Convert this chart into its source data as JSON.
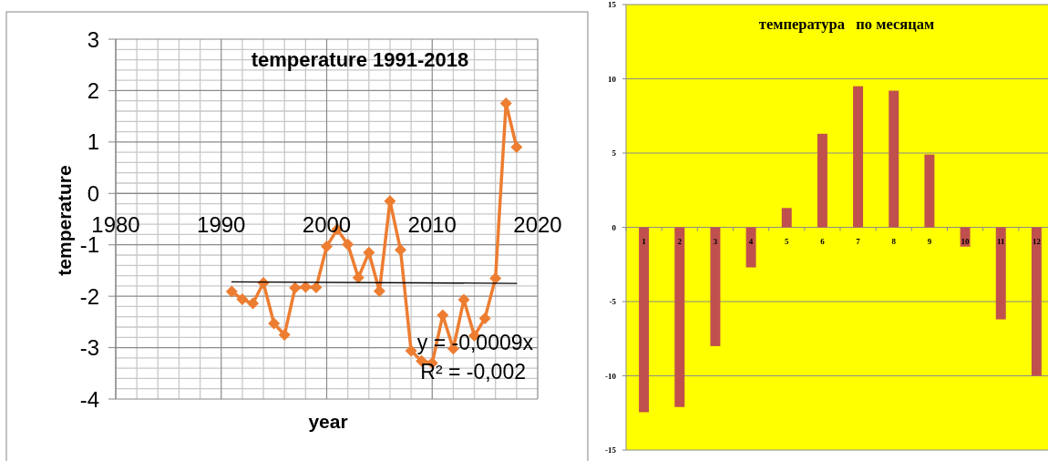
{
  "chart_data": [
    {
      "type": "line",
      "title": "temperature 1991-2018",
      "xlabel": "year",
      "ylabel": "temperature",
      "x": [
        1991,
        1992,
        1993,
        1994,
        1995,
        1996,
        1997,
        1998,
        1999,
        2000,
        2001,
        2002,
        2003,
        2004,
        2005,
        2006,
        2007,
        2008,
        2009,
        2010,
        2011,
        2012,
        2013,
        2014,
        2015,
        2016,
        2017,
        2018
      ],
      "series": [
        {
          "color": "#ed7d31",
          "values": [
            -1.91,
            -2.06,
            -2.14,
            -1.74,
            -2.53,
            -2.75,
            -1.84,
            -1.82,
            -1.83,
            -1.03,
            -0.7,
            -0.99,
            -1.64,
            -1.15,
            -1.9,
            -0.15,
            -1.1,
            -3.06,
            -3.26,
            -3.3,
            -2.37,
            -3.02,
            -2.07,
            -2.77,
            -2.43,
            -1.65,
            1.75,
            0.9
          ]
        },
        {
          "type": "line",
          "x": [
            1991,
            2018
          ],
          "values": [
            -1.72,
            -1.75
          ],
          "color": "#000000",
          "marker": "none"
        }
      ],
      "xlim": [
        1980,
        2020
      ],
      "xticks": [
        1980,
        {
          "value": 1982,
          "label": null
        },
        {
          "value": 1984,
          "label": null
        },
        {
          "value": 1986,
          "label": null
        },
        {
          "value": 1988,
          "label": null
        },
        1990,
        {
          "value": 1992,
          "label": null
        },
        {
          "value": 1994,
          "label": null
        },
        {
          "value": 1996,
          "label": null
        },
        {
          "value": 1998,
          "label": null
        },
        2000,
        {
          "value": 2002,
          "label": null
        },
        {
          "value": 2004,
          "label": null
        },
        {
          "value": 2006,
          "label": null
        },
        {
          "value": 2008,
          "label": null
        },
        2010,
        {
          "value": 2012,
          "label": null
        },
        {
          "value": 2014,
          "label": null
        },
        {
          "value": 2016,
          "label": null
        },
        {
          "value": 2018,
          "label": null
        },
        2020
      ],
      "ylim": [
        -4,
        3
      ],
      "yticks": [
        -4,
        {
          "value": -3.8,
          "label": null
        },
        {
          "value": -3.6,
          "label": null
        },
        {
          "value": -3.4,
          "label": null
        },
        {
          "value": -3.2,
          "label": null
        },
        -3,
        {
          "value": -2.8,
          "label": null
        },
        {
          "value": -2.6,
          "label": null
        },
        {
          "value": -2.4,
          "label": null
        },
        {
          "value": -2.2,
          "label": null
        },
        -2,
        {
          "value": -1.8,
          "label": null
        },
        {
          "value": -1.6,
          "label": null
        },
        {
          "value": -1.4,
          "label": null
        },
        {
          "value": -1.2,
          "label": null
        },
        -1,
        {
          "value": -0.8,
          "label": null
        },
        {
          "value": -0.6,
          "label": null
        },
        {
          "value": -0.4,
          "label": null
        },
        {
          "value": -0.2,
          "label": null
        },
        0,
        {
          "value": 0.2,
          "label": null
        },
        {
          "value": 0.4,
          "label": null
        },
        {
          "value": 0.6,
          "label": null
        },
        {
          "value": 0.8,
          "label": null
        },
        1,
        {
          "value": 1.2,
          "label": null
        },
        {
          "value": 1.4,
          "label": null
        },
        {
          "value": 1.6,
          "label": null
        },
        {
          "value": 1.8,
          "label": null
        },
        2,
        {
          "value": 2.2,
          "label": null
        },
        {
          "value": 2.4,
          "label": null
        },
        {
          "value": 2.6,
          "label": null
        },
        {
          "value": 2.8,
          "label": null
        },
        3
      ],
      "grid": true,
      "marker": "diamond",
      "annotations": [
        "y = -0,0009x",
        "R² = -0,002"
      ]
    },
    {
      "type": "bar",
      "title": "температура   по месяцам",
      "categories": [
        "1",
        "2",
        "3",
        "4",
        "5",
        "6",
        "7",
        "8",
        "9",
        "10",
        "11",
        "12"
      ],
      "values": [
        -12.45,
        -12.1,
        -8,
        -2.7,
        1.3,
        6.3,
        9.5,
        9.2,
        4.9,
        -1.3,
        -6.2,
        -10
      ],
      "color": "#c0504d",
      "ylim": [
        -15,
        15
      ],
      "yticks": [
        -15,
        -10,
        -5,
        0,
        5,
        10,
        15
      ],
      "grid": "y"
    }
  ]
}
